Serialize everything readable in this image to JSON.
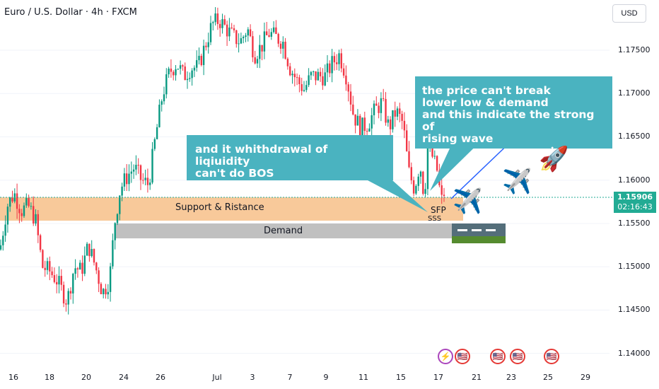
{
  "header": {
    "title": "Euro / U.S. Dollar · 4h · FXCM",
    "currency_button": "USD"
  },
  "price_axis": {
    "labels": [
      "1.17500",
      "1.17000",
      "1.16500",
      "1.16000",
      "1.15500",
      "1.15000",
      "1.14500",
      "1.14000"
    ],
    "current_price": "1.15906",
    "countdown": "02:16:43"
  },
  "time_axis": {
    "labels": [
      "16",
      "18",
      "20",
      "24",
      "26",
      "Jul",
      "3",
      "7",
      "9",
      "11",
      "15",
      "17",
      "21",
      "23",
      "25",
      "29"
    ]
  },
  "zones": {
    "support_label": "Support & Ristance",
    "demand_label": "Demand"
  },
  "annotations": {
    "callout_left": [
      "and it whithdrawal of liqiuidity",
      "can't do BOS"
    ],
    "callout_right": [
      "the price can't break",
      "lower low & demand",
      "and this indicate the strong of",
      "rising wave"
    ],
    "sfp": "SFP",
    "sss": "SSS"
  },
  "icons": {
    "airplane": "airplane-icon",
    "rocket": "rocket-icon",
    "runway": "runway-icon",
    "events": [
      "lightning-us-flag-icon",
      "us-flag-icon",
      "us-flag-icon",
      "us-flag-icon",
      "us-flag-icon"
    ]
  },
  "colors": {
    "bull": "#089981",
    "bear": "#f23645",
    "support_zone": "#f7c38f",
    "demand_zone": "#bdbdbd",
    "callout": "#4ab3c0",
    "price_tag": "#22ab94",
    "arrow": "#2962ff"
  },
  "chart_data": {
    "type": "candlestick",
    "symbol": "EUR/USD",
    "timeframe": "4h",
    "ylim": [
      1.1385,
      1.1808
    ],
    "y_ticks": [
      1.175,
      1.17,
      1.165,
      1.16,
      1.155,
      1.15,
      1.145,
      1.14
    ],
    "last_price": 1.15906,
    "zones": [
      {
        "name": "Support & Ristance",
        "top": 1.1589,
        "bottom": 1.1562
      },
      {
        "name": "Demand",
        "top": 1.1559,
        "bottom": 1.1543
      }
    ],
    "close_path": [
      [
        0,
        1.152
      ],
      [
        10,
        1.157
      ],
      [
        20,
        1.1585
      ],
      [
        30,
        1.1565
      ],
      [
        40,
        1.157
      ],
      [
        50,
        1.1555
      ],
      [
        60,
        1.15
      ],
      [
        70,
        1.1495
      ],
      [
        80,
        1.1485
      ],
      [
        95,
        1.146
      ],
      [
        105,
        1.15
      ],
      [
        115,
        1.1495
      ],
      [
        125,
        1.1525
      ],
      [
        135,
        1.15
      ],
      [
        145,
        1.147
      ],
      [
        155,
        1.1485
      ],
      [
        162,
        1.155
      ],
      [
        170,
        1.159
      ],
      [
        180,
        1.1605
      ],
      [
        190,
        1.1615
      ],
      [
        200,
        1.16
      ],
      [
        210,
        1.1595
      ],
      [
        220,
        1.165
      ],
      [
        230,
        1.17
      ],
      [
        240,
        1.1725
      ],
      [
        250,
        1.1735
      ],
      [
        260,
        1.172
      ],
      [
        270,
        1.173
      ],
      [
        280,
        1.173
      ],
      [
        290,
        1.1755
      ],
      [
        300,
        1.178
      ],
      [
        310,
        1.1785
      ],
      [
        320,
        1.1775
      ],
      [
        330,
        1.1765
      ],
      [
        340,
        1.176
      ],
      [
        350,
        1.1775
      ],
      [
        360,
        1.1745
      ],
      [
        370,
        1.1755
      ],
      [
        380,
        1.177
      ],
      [
        390,
        1.1765
      ],
      [
        400,
        1.176
      ],
      [
        410,
        1.173
      ],
      [
        420,
        1.1715
      ],
      [
        430,
        1.1705
      ],
      [
        440,
        1.172
      ],
      [
        450,
        1.172
      ],
      [
        460,
        1.172
      ],
      [
        470,
        1.1735
      ],
      [
        480,
        1.1745
      ],
      [
        490,
        1.172
      ],
      [
        500,
        1.1675
      ],
      [
        510,
        1.166
      ],
      [
        520,
        1.1665
      ],
      [
        530,
        1.168
      ],
      [
        540,
        1.169
      ],
      [
        550,
        1.166
      ],
      [
        560,
        1.168
      ],
      [
        570,
        1.1665
      ],
      [
        578,
        1.161
      ],
      [
        586,
        1.159
      ],
      [
        594,
        1.162
      ],
      [
        600,
        1.158
      ],
      [
        606,
        1.165
      ],
      [
        612,
        1.1625
      ],
      [
        618,
        1.1612
      ],
      [
        624,
        1.1575
      ],
      [
        630,
        1.159
      ]
    ]
  }
}
